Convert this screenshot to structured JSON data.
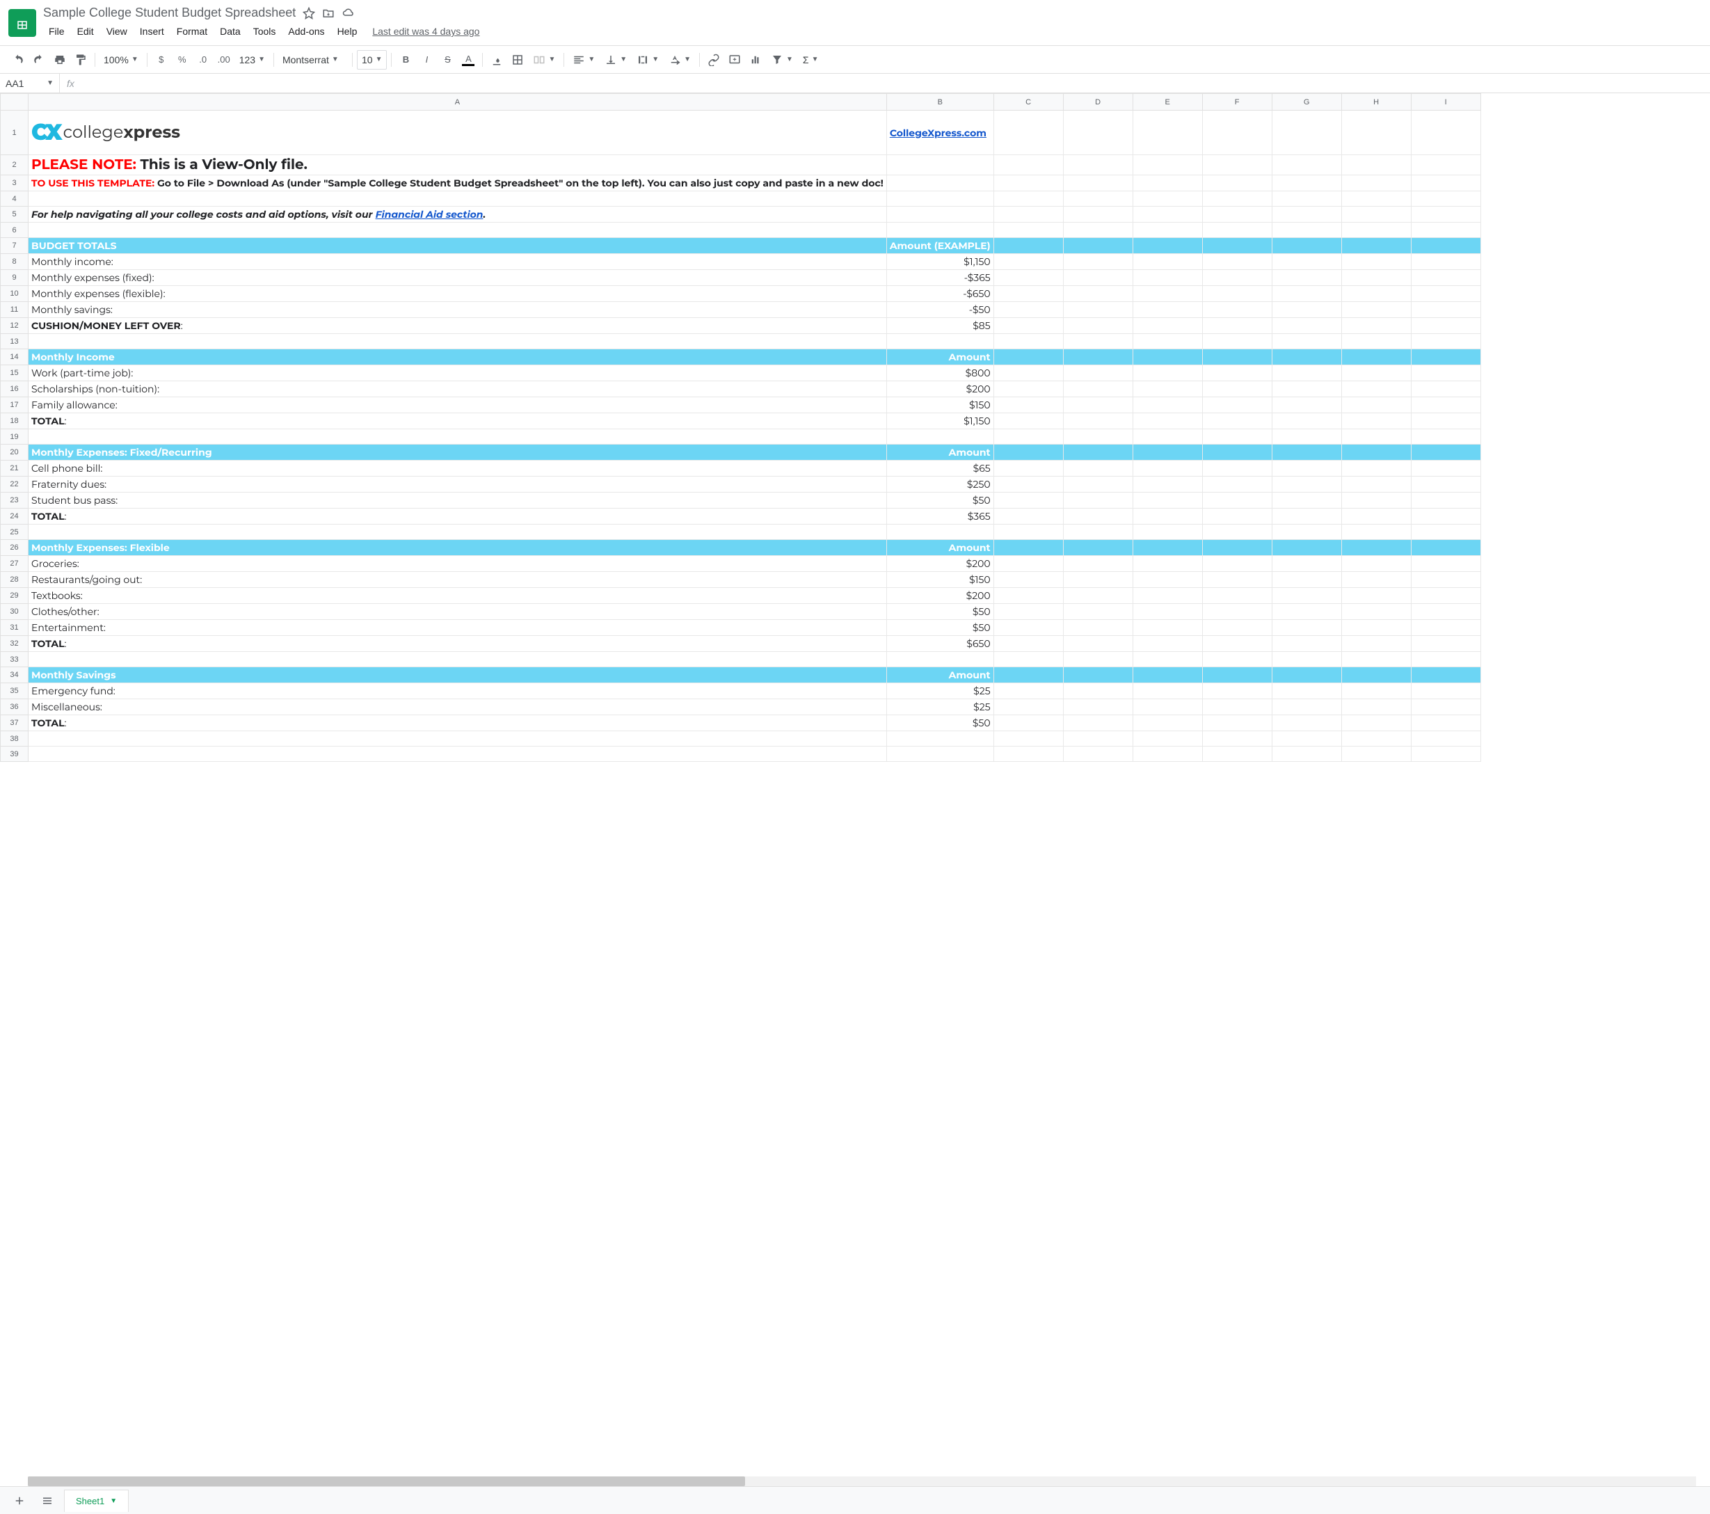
{
  "doc": {
    "title": "Sample College Student Budget Spreadsheet",
    "last_edit": "Last edit was 4 days ago"
  },
  "menus": [
    "File",
    "Edit",
    "View",
    "Insert",
    "Format",
    "Data",
    "Tools",
    "Add-ons",
    "Help"
  ],
  "toolbar": {
    "zoom": "100%",
    "font": "Montserrat",
    "fontsize": "10"
  },
  "namebox": "AA1",
  "columns": [
    "A",
    "B",
    "C",
    "D",
    "E",
    "F",
    "G",
    "H",
    "I"
  ],
  "col_widths": {
    "A": "col-A",
    "B": "col-B",
    "C": "col-other",
    "D": "col-other",
    "E": "col-other",
    "F": "col-other",
    "G": "col-other",
    "H": "col-other",
    "I": "col-other"
  },
  "spreadsheet": {
    "logo_brand": "CX",
    "logo_text1": "college",
    "logo_text2": "xpress",
    "site_link": "CollegeXpress.com",
    "note_prefix": "PLEASE NOTE:",
    "note_text": " This is a View-Only file.",
    "template_prefix": "TO USE THIS TEMPLATE:",
    "template_text": " Go to File > Download As (under \"Sample College Student Budget Spreadsheet\" on the top left). You can also just copy and paste in a new doc!",
    "help_prefix": "For help navigating all your college costs and aid options, visit our ",
    "help_link": "Financial Aid section",
    "help_suffix": ".",
    "sections": [
      {
        "header": [
          "BUDGET TOTALS",
          "Amount (EXAMPLE)"
        ],
        "rows": [
          [
            "Monthly income:",
            "$1,150"
          ],
          [
            "Monthly expenses (fixed):",
            "-$365"
          ],
          [
            "Monthly expenses (flexible):",
            "-$650"
          ],
          [
            "Monthly savings:",
            "-$50"
          ]
        ],
        "total": [
          "CUSHION/MONEY LEFT OVER",
          "$85"
        ]
      },
      {
        "header": [
          "Monthly Income",
          "Amount"
        ],
        "rows": [
          [
            "Work (part-time job):",
            "$800"
          ],
          [
            "Scholarships (non-tuition):",
            "$200"
          ],
          [
            "Family allowance:",
            "$150"
          ]
        ],
        "total": [
          "TOTAL",
          "$1,150"
        ]
      },
      {
        "header": [
          "Monthly Expenses: Fixed/Recurring",
          "Amount"
        ],
        "rows": [
          [
            "Cell phone bill:",
            "$65"
          ],
          [
            "Fraternity dues:",
            "$250"
          ],
          [
            "Student bus pass:",
            "$50"
          ]
        ],
        "total": [
          "TOTAL",
          "$365"
        ]
      },
      {
        "header": [
          "Monthly Expenses: Flexible",
          "Amount"
        ],
        "rows": [
          [
            "Groceries:",
            "$200"
          ],
          [
            "Restaurants/going out:",
            "$150"
          ],
          [
            "Textbooks:",
            "$200"
          ],
          [
            "Clothes/other:",
            "$50"
          ],
          [
            "Entertainment:",
            "$50"
          ]
        ],
        "total": [
          "TOTAL",
          "$650"
        ]
      },
      {
        "header": [
          "Monthly Savings",
          "Amount"
        ],
        "rows": [
          [
            "Emergency fund:",
            "$25"
          ],
          [
            "Miscellaneous:",
            "$25"
          ]
        ],
        "total": [
          "TOTAL",
          "$50"
        ]
      }
    ]
  },
  "sheet_tab": "Sheet1",
  "colors": {
    "section_header_bg": "#6cd5f4",
    "link": "#1155cc",
    "red": "#ff0000",
    "green": "#0f9d58"
  }
}
